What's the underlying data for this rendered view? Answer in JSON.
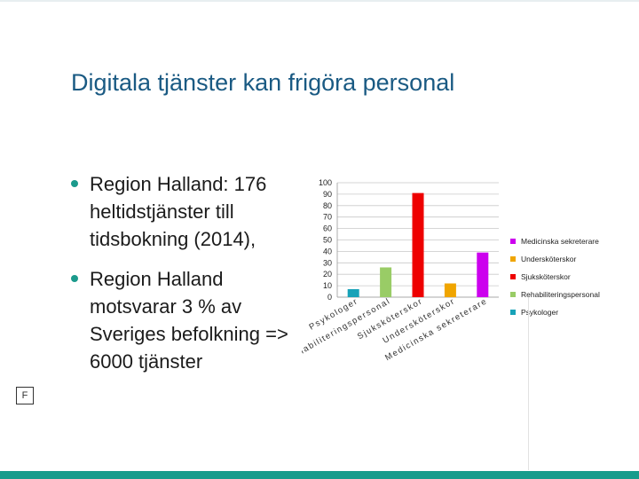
{
  "slide": {
    "title": "Digitala tjänster kan frigöra personal",
    "bullets": [
      "Region Halland: 176 heltidstjänster till tidsbokning (2014),",
      "Region Halland motsvarar 3 % av Sveriges befolkning => 6000 tjänster"
    ],
    "footer_label": "F"
  },
  "colors": {
    "title": "#1a5a83",
    "bullet_dot": "#1b9a8c",
    "bottom_bar": "#179c8c"
  },
  "chart_data": {
    "type": "bar",
    "categories": [
      "Psykologer",
      "Rehabiliteringspersonal",
      "Sjuksköterskor",
      "Undersköterskor",
      "Medicinska sekreterare"
    ],
    "values": [
      7,
      26,
      91,
      12,
      39
    ],
    "colors": [
      "#17a2b8",
      "#99cc66",
      "#ee0000",
      "#f0a500",
      "#cc00ee"
    ],
    "ylim": [
      0,
      100
    ],
    "yticks": [
      0,
      10,
      20,
      30,
      40,
      50,
      60,
      70,
      80,
      90,
      100
    ],
    "xlabel": "",
    "ylabel": "",
    "title": "",
    "grid": true,
    "legend": {
      "placement": "right",
      "entries": [
        "Medicinska sekreterare",
        "Undersköterskor",
        "Sjuksköterskor",
        "Rehabiliteringspersonal",
        "Psykologer"
      ],
      "colors": [
        "#cc00ee",
        "#f0a500",
        "#ee0000",
        "#99cc66",
        "#17a2b8"
      ]
    }
  }
}
